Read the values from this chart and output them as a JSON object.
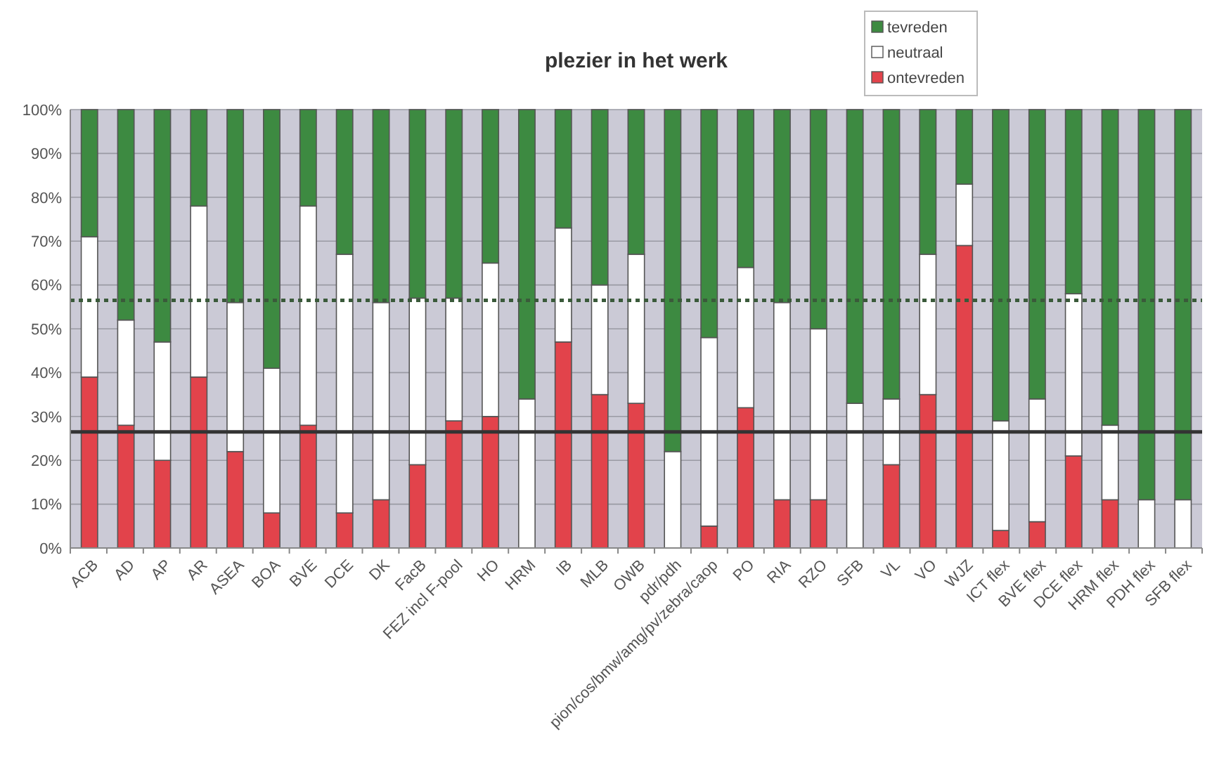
{
  "chart_data": {
    "type": "bar",
    "title": "plezier in het werk",
    "stacked": true,
    "categories": [
      "ACB",
      "AD",
      "AP",
      "AR",
      "ASEA",
      "BOA",
      "BVE",
      "DCE",
      "DK",
      "FacB",
      "FEZ incl F-pool",
      "HO",
      "HRM",
      "IB",
      "MLB",
      "OWB",
      "pdr/pdh",
      "pion/cos/bmw/amg/pv/zebra/caop",
      "PO",
      "RIA",
      "RZO",
      "SFB",
      "VL",
      "VO",
      "WJZ",
      "ICT flex",
      "BVE flex",
      "DCE flex",
      "HRM flex",
      "PDH flex",
      "SFB flex"
    ],
    "series": [
      {
        "name": "ontevreden",
        "color": "#e2434b",
        "values": [
          39,
          28,
          20,
          39,
          22,
          8,
          28,
          8,
          11,
          19,
          29,
          30,
          0,
          47,
          35,
          33,
          0,
          5,
          32,
          11,
          11,
          0,
          19,
          35,
          69,
          4,
          6,
          21,
          11,
          0,
          0
        ]
      },
      {
        "name": "neutraal",
        "color": "#ffffff",
        "values": [
          32,
          24,
          27,
          39,
          34,
          33,
          50,
          59,
          45,
          38,
          28,
          35,
          34,
          26,
          25,
          34,
          22,
          43,
          32,
          45,
          39,
          33,
          15,
          32,
          14,
          25,
          28,
          37,
          17,
          11,
          11
        ]
      },
      {
        "name": "tevreden",
        "color": "#3d8a41",
        "values": [
          29,
          48,
          53,
          22,
          44,
          59,
          22,
          33,
          44,
          43,
          43,
          35,
          66,
          27,
          40,
          33,
          78,
          52,
          36,
          44,
          50,
          67,
          66,
          33,
          17,
          71,
          66,
          42,
          72,
          89,
          89
        ]
      }
    ],
    "ylim": [
      0,
      100
    ],
    "yticks": [
      {
        "value": 0,
        "label": "0%"
      },
      {
        "value": 10,
        "label": "10%"
      },
      {
        "value": 20,
        "label": "20%"
      },
      {
        "value": 30,
        "label": "30%"
      },
      {
        "value": 40,
        "label": "40%"
      },
      {
        "value": 50,
        "label": "50%"
      },
      {
        "value": 60,
        "label": "60%"
      },
      {
        "value": 70,
        "label": "70%"
      },
      {
        "value": 80,
        "label": "80%"
      },
      {
        "value": 90,
        "label": "90%"
      },
      {
        "value": 100,
        "label": "100%"
      }
    ],
    "grid": "y",
    "legend": "top right",
    "ref_lines": [
      {
        "axis": "y",
        "value": 56.5,
        "color": "#3a5a3a",
        "line_style": "dotted"
      },
      {
        "axis": "y",
        "value": 26.5,
        "color": "#333333",
        "line_style": "solid"
      }
    ]
  }
}
